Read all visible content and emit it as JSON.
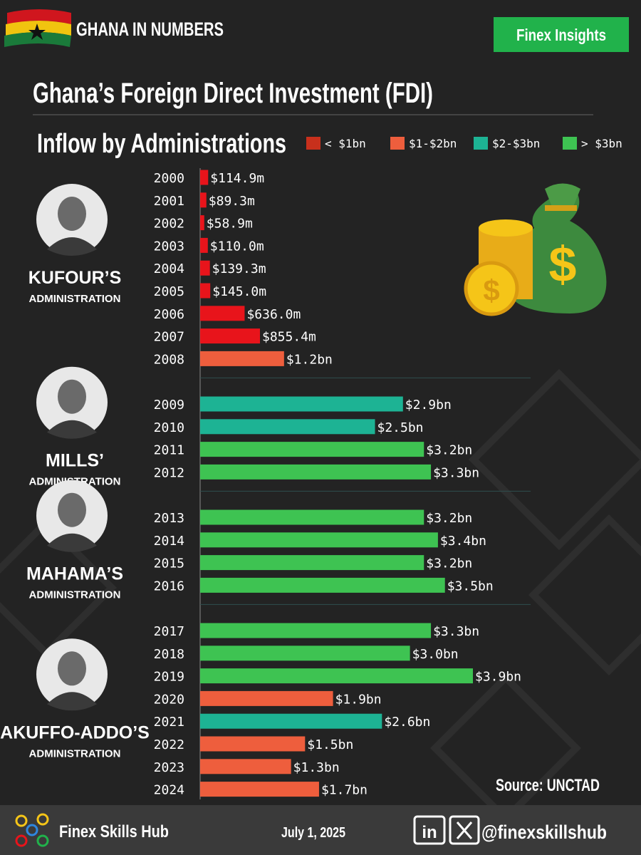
{
  "header": {
    "brand": "GHANA IN NUMBERS",
    "badge": "Finex Insights"
  },
  "chart_data": {
    "type": "bar",
    "orientation": "horizontal",
    "title": "Ghana’s Foreign Direct Investment (FDI)",
    "subtitle": "Inflow by Administrations",
    "legend": [
      {
        "name": "< $1bn",
        "color": "#c8301c"
      },
      {
        "name": "$1-$2bn",
        "color": "#ee5e3d"
      },
      {
        "name": "$2-$3bn",
        "color": "#1db394"
      },
      {
        "name": "> $3bn",
        "color": "#3ec352"
      }
    ],
    "administrations": [
      {
        "name": "KUFOUR’S",
        "label": "ADMINISTRATION",
        "categories": [
          "2000",
          "2001",
          "2002",
          "2003",
          "2004",
          "2005",
          "2006",
          "2007",
          "2008"
        ],
        "values": [
          114.9,
          89.3,
          58.9,
          110.0,
          139.3,
          145.0,
          636.0,
          855.4,
          1200
        ],
        "value_labels": [
          "$114.9m",
          "$89.3m",
          "$58.9m",
          "$110.0m",
          "$139.3m",
          "$145.0m",
          "$636.0m",
          "$855.4m",
          "$1.2bn"
        ],
        "colors": [
          "#e8141b",
          "#e8141b",
          "#e8141b",
          "#e8141b",
          "#e8141b",
          "#e8141b",
          "#e8141b",
          "#e8141b",
          "#ee5e3d"
        ]
      },
      {
        "name": "MILLS’",
        "label": "ADMINISTRATION",
        "categories": [
          "2009",
          "2010",
          "2011",
          "2012"
        ],
        "values": [
          2900,
          2500,
          3200,
          3300
        ],
        "value_labels": [
          "$2.9bn",
          "$2.5bn",
          "$3.2bn",
          "$3.3bn"
        ],
        "colors": [
          "#1db394",
          "#1db394",
          "#3ec352",
          "#3ec352"
        ]
      },
      {
        "name": "MAHAMA’S",
        "label": "ADMINISTRATION",
        "categories": [
          "2013",
          "2014",
          "2015",
          "2016"
        ],
        "values": [
          3200,
          3400,
          3200,
          3500
        ],
        "value_labels": [
          "$3.2bn",
          "$3.4bn",
          "$3.2bn",
          "$3.5bn"
        ],
        "colors": [
          "#3ec352",
          "#3ec352",
          "#3ec352",
          "#3ec352"
        ]
      },
      {
        "name": "AKUFFO-ADDO’S",
        "label": "ADMINISTRATION",
        "categories": [
          "2017",
          "2018",
          "2019",
          "2020",
          "2021",
          "2022",
          "2023",
          "2024"
        ],
        "values": [
          3300,
          3000,
          3900,
          1900,
          2600,
          1500,
          1300,
          1700
        ],
        "value_labels": [
          "$3.3bn",
          "$3.0bn",
          "$3.9bn",
          "$1.9bn",
          "$2.6bn",
          "$1.5bn",
          "$1.3bn",
          "$1.7bn"
        ],
        "colors": [
          "#3ec352",
          "#3ec352",
          "#3ec352",
          "#ee5e3d",
          "#1db394",
          "#ee5e3d",
          "#ee5e3d",
          "#ee5e3d"
        ]
      }
    ],
    "source": "Source: UNCTAD"
  },
  "footer": {
    "brand": "Finex Skills Hub",
    "date": "July 1, 2025",
    "handle": "@finexskillshub"
  }
}
